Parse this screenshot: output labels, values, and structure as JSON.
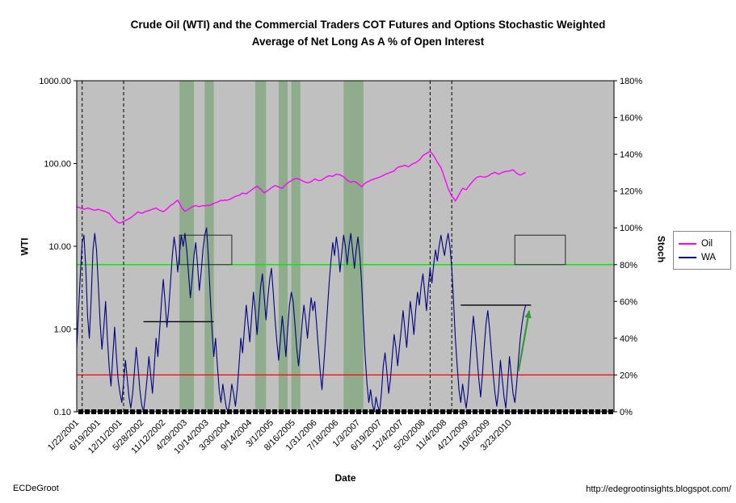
{
  "page": {
    "title_line1": "Crude Oil (WTI) and the Commercial Traders COT Futures and Options Stochastic Weighted",
    "title_line2": "Average of Net Long As A % of Open Interest",
    "footer_left": "ECDeGroot",
    "footer_right": "http://edegrootinsights.blogspot.com/"
  },
  "chart_data": {
    "type": "line",
    "title": "Crude Oil (WTI) and the Commercial Traders COT Futures and Options Stochastic Weighted Average of Net Long As A % of Open Interest",
    "plot_bg": "#C0C0C0",
    "band_color": "#7FA57C",
    "annotation_box_color": "#404040",
    "x_axis": {
      "label": "Date",
      "ticks_every_n_points": 12,
      "total_slots": 298,
      "tick_labels": [
        "1/22/2001",
        "6/19/2001",
        "12/11/2001",
        "5/28/2002",
        "11/12/2002",
        "4/29/2003",
        "10/14/2003",
        "3/30/2004",
        "9/14/2004",
        "3/1/2005",
        "8/16/2005",
        "1/31/2006",
        "7/18/2006",
        "1/3/2007",
        "6/19/2007",
        "12/4/2007",
        "5/20/2008",
        "11/4/2008",
        "4/21/2009",
        "10/6/2009",
        "3/23/2010"
      ]
    },
    "y_axis_left": {
      "label": "WTI",
      "scale": "log",
      "min": 0.1,
      "max": 1000,
      "ticks": [
        {
          "label": "1000.00",
          "value": 1000
        },
        {
          "label": "100.00",
          "value": 100
        },
        {
          "label": "10.00",
          "value": 10
        },
        {
          "label": "1.00",
          "value": 1
        },
        {
          "label": "0.10",
          "value": 0.1
        }
      ]
    },
    "y_axis_right": {
      "label": "Stoch",
      "min": 0,
      "max": 180,
      "unit": "%",
      "ticks": [
        {
          "label": "180%",
          "value": 180
        },
        {
          "label": "160%",
          "value": 160
        },
        {
          "label": "140%",
          "value": 140
        },
        {
          "label": "120%",
          "value": 120
        },
        {
          "label": "100%",
          "value": 100
        },
        {
          "label": "80%",
          "value": 80
        },
        {
          "label": "60%",
          "value": 60
        },
        {
          "label": "40%",
          "value": 40
        },
        {
          "label": "20%",
          "value": 20
        },
        {
          "label": "0%",
          "value": 0
        }
      ]
    },
    "series": [
      {
        "name": "Oil",
        "axis": "left",
        "color": "#FF00FF",
        "width": 1.4,
        "values": [
          30,
          29.5,
          29,
          28.5,
          28,
          28.4,
          29,
          28.6,
          28,
          27.6,
          27.2,
          27.6,
          28,
          27.5,
          27,
          26.6,
          26.2,
          25.6,
          25,
          23.5,
          22,
          21,
          20,
          19.4,
          19,
          19.5,
          20,
          20.5,
          21,
          21.5,
          22.2,
          23,
          24,
          25,
          26,
          25.4,
          25,
          25.6,
          26.2,
          26.6,
          27,
          27.5,
          28,
          28.5,
          29,
          28,
          27.2,
          26.6,
          26.2,
          27,
          28.2,
          29.6,
          31,
          32,
          33.2,
          34.6,
          36,
          33,
          30,
          28,
          26.4,
          27.2,
          28,
          29,
          30,
          30.5,
          31,
          30.5,
          30.2,
          30.6,
          31,
          30.8,
          31.2,
          31,
          31.4,
          32,
          33,
          33.6,
          34.2,
          35,
          36,
          35.6,
          36.2,
          35.8,
          36.4,
          37,
          38,
          39,
          40,
          40.6,
          41.2,
          42.6,
          44,
          43.4,
          43,
          44.6,
          46.2,
          48,
          50,
          51.6,
          53.2,
          51,
          49,
          46.4,
          44.2,
          45.6,
          47.2,
          49,
          51,
          52.6,
          54.2,
          53.2,
          52,
          51,
          50.2,
          53,
          56,
          58,
          60.2,
          62,
          64,
          65.2,
          66.2,
          65,
          64,
          62,
          60.4,
          59.2,
          58.4,
          59.2,
          60.4,
          62.6,
          65,
          63.6,
          62.2,
          62.6,
          63.2,
          65.6,
          68,
          69.6,
          71,
          70.4,
          70,
          72,
          74.2,
          73.6,
          73,
          71,
          69,
          66,
          63,
          61,
          59.2,
          60.2,
          61,
          59,
          57,
          54.6,
          52.2,
          55,
          58,
          59.6,
          61,
          62.6,
          64,
          65,
          66.2,
          67.2,
          68.4,
          70,
          72,
          73.6,
          75.2,
          76.6,
          78.2,
          79.6,
          81.2,
          85.6,
          90,
          91,
          92.2,
          93.6,
          95,
          93,
          91,
          94.6,
          98,
          100.2,
          102.4,
          106,
          110,
          117,
          125,
          128.6,
          132.2,
          136.2,
          140.2,
          132,
          124,
          114,
          104,
          96,
          89,
          78,
          67,
          58,
          49.6,
          45,
          40.2,
          38.4,
          35.2,
          38.2,
          42,
          46,
          50.2,
          49.2,
          48.2,
          51.6,
          55.2,
          58.6,
          62,
          65.2,
          68.2,
          69.2,
          70.2,
          69,
          68.2,
          69.2,
          70.4,
          72.6,
          75,
          76.6,
          78.2,
          76.2,
          74.2,
          76,
          78,
          79.2,
          80.2,
          80.6,
          81.2,
          82.6,
          84,
          80.2,
          76.2,
          74.2,
          72.4,
          74.2,
          76.2,
          78
        ]
      },
      {
        "name": "WA",
        "axis": "right",
        "color": "#000080",
        "width": 1.1,
        "values": [
          35,
          55,
          75,
          92,
          96,
          78,
          52,
          40,
          62,
          88,
          97,
          88,
          68,
          48,
          34,
          46,
          60,
          40,
          24,
          14,
          30,
          46,
          30,
          17,
          10,
          5,
          16,
          28,
          18,
          8,
          2,
          10,
          22,
          35,
          24,
          12,
          4,
          0,
          8,
          18,
          30,
          20,
          10,
          25,
          40,
          30,
          45,
          60,
          72,
          60,
          46,
          56,
          70,
          85,
          95,
          88,
          76,
          86,
          96,
          90,
          97,
          88,
          75,
          62,
          72,
          85,
          92,
          80,
          66,
          76,
          88,
          96,
          100,
          84,
          64,
          45,
          30,
          40,
          25,
          12,
          5,
          15,
          8,
          2,
          0,
          6,
          15,
          10,
          3,
          12,
          25,
          40,
          32,
          45,
          58,
          48,
          38,
          52,
          65,
          55,
          42,
          55,
          68,
          75,
          62,
          50,
          62,
          72,
          78,
          65,
          50,
          38,
          28,
          40,
          52,
          42,
          30,
          45,
          58,
          65,
          60,
          48,
          35,
          25,
          35,
          48,
          58,
          50,
          40,
          52,
          62,
          55,
          60,
          48,
          35,
          22,
          12,
          25,
          40,
          55,
          70,
          82,
          92,
          85,
          95,
          88,
          76,
          86,
          96,
          90,
          80,
          90,
          97,
          88,
          78,
          88,
          95,
          85,
          70,
          50,
          30,
          15,
          5,
          12,
          4,
          0,
          8,
          3,
          0,
          10,
          25,
          32,
          22,
          10,
          18,
          30,
          42,
          35,
          25,
          35,
          45,
          55,
          45,
          35,
          48,
          60,
          52,
          42,
          55,
          65,
          58,
          68,
          75,
          65,
          55,
          68,
          78,
          70,
          80,
          88,
          82,
          90,
          96,
          90,
          85,
          92,
          97,
          90,
          78,
          60,
          40,
          25,
          12,
          5,
          15,
          8,
          2,
          10,
          25,
          40,
          52,
          42,
          30,
          18,
          8,
          20,
          35,
          48,
          55,
          45,
          32,
          20,
          10,
          3,
          12,
          28,
          18,
          8,
          2,
          15,
          30,
          20,
          10,
          5,
          15,
          28,
          40,
          48,
          54,
          58
        ]
      }
    ],
    "reference_lines": [
      {
        "axis": "right",
        "value": 80,
        "color": "#00EE00",
        "width": 1.5
      },
      {
        "axis": "right",
        "value": 20,
        "color": "#FF0000",
        "width": 1.2
      }
    ],
    "vertical_dashed_lines_idx": [
      3,
      26,
      196,
      208
    ],
    "green_bands_idx": [
      [
        57,
        65
      ],
      [
        71,
        76
      ],
      [
        99,
        105
      ],
      [
        112,
        117
      ],
      [
        119,
        124
      ],
      [
        148,
        159
      ]
    ],
    "annotation_boxes": [
      {
        "x1": 57,
        "x2": 86,
        "y1": 80,
        "y2": 96
      },
      {
        "x1": 243,
        "x2": 271,
        "y1": 80,
        "y2": 96
      }
    ],
    "annotation_segments": [
      {
        "x1": 37,
        "x2": 76,
        "y": 49
      },
      {
        "x1": 213,
        "x2": 252,
        "y": 58
      }
    ],
    "arrow": {
      "x1": 245,
      "y1": 22,
      "x2": 251,
      "y2": 55,
      "color": "#339933"
    },
    "zero_markers": {
      "value": 0,
      "marker": "square",
      "color": "#000000"
    },
    "legend": {
      "items": [
        {
          "label": "Oil",
          "color": "#FF00FF"
        },
        {
          "label": "WA",
          "color": "#000080"
        }
      ]
    }
  }
}
